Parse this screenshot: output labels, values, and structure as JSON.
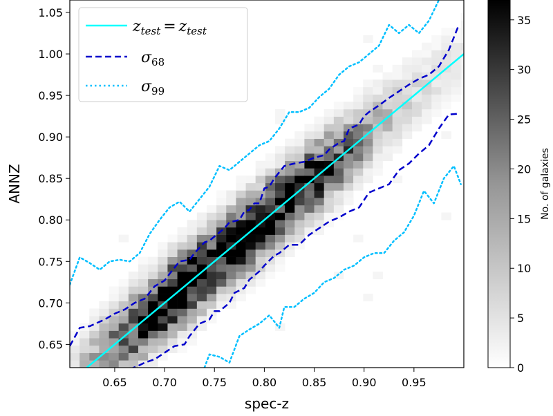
{
  "chart_data": {
    "type": "heatmap",
    "title": "",
    "xlabel": "spec-z",
    "ylabel": "ANNZ",
    "xlim": [
      0.605,
      1.0
    ],
    "ylim": [
      0.622,
      1.065
    ],
    "x_ticks": [
      0.65,
      0.7,
      0.75,
      0.8,
      0.85,
      0.9,
      0.95
    ],
    "x_tick_labels": [
      "0.65",
      "0.70",
      "0.75",
      "0.80",
      "0.85",
      "0.90",
      "0.95"
    ],
    "y_ticks": [
      0.65,
      0.7,
      0.75,
      0.8,
      0.85,
      0.9,
      0.95,
      1.0,
      1.05
    ],
    "y_tick_labels": [
      "0.65",
      "0.70",
      "0.75",
      "0.80",
      "0.85",
      "0.90",
      "0.95",
      "1.00",
      "1.05"
    ],
    "colorbar": {
      "label": "No. of galaxies",
      "range": [
        0,
        37
      ],
      "ticks": [
        0,
        5,
        10,
        15,
        20,
        25,
        30,
        35
      ],
      "tick_labels": [
        "0",
        "5",
        "10",
        "15",
        "20",
        "25",
        "30",
        "35"
      ],
      "colormap": "Greys"
    },
    "histogram": {
      "bin_width_x": 0.0098,
      "bin_width_y": 0.0089,
      "peak_density": 37,
      "scatter_sigma": 0.026,
      "peaks": [
        {
          "x": 0.715,
          "y": 0.705,
          "weight": 37
        },
        {
          "x": 0.785,
          "y": 0.79,
          "weight": 33
        },
        {
          "x": 0.83,
          "y": 0.83,
          "weight": 28
        }
      ]
    },
    "series": [
      {
        "name": "z_test = z_test",
        "style": "solid",
        "color": "#00ffff",
        "x": [
          0.605,
          1.0
        ],
        "y": [
          0.605,
          1.0
        ]
      },
      {
        "name": "σ68 upper",
        "style": "dashed",
        "color": "#0000cc",
        "x": [
          0.605,
          0.615,
          0.625,
          0.64,
          0.65,
          0.66,
          0.67,
          0.68,
          0.69,
          0.7,
          0.705,
          0.715,
          0.725,
          0.73,
          0.74,
          0.745,
          0.755,
          0.76,
          0.765,
          0.775,
          0.78,
          0.785,
          0.79,
          0.795,
          0.8,
          0.805,
          0.81,
          0.82,
          0.83,
          0.84,
          0.85,
          0.86,
          0.865,
          0.875,
          0.88,
          0.885,
          0.895,
          0.9,
          0.905,
          0.915,
          0.925,
          0.935,
          0.945,
          0.955,
          0.965,
          0.975,
          0.985,
          0.995
        ],
        "y": [
          0.648,
          0.67,
          0.672,
          0.68,
          0.687,
          0.692,
          0.7,
          0.705,
          0.72,
          0.727,
          0.735,
          0.75,
          0.752,
          0.76,
          0.773,
          0.775,
          0.785,
          0.79,
          0.797,
          0.8,
          0.81,
          0.812,
          0.82,
          0.82,
          0.838,
          0.84,
          0.85,
          0.865,
          0.868,
          0.87,
          0.875,
          0.878,
          0.885,
          0.893,
          0.895,
          0.91,
          0.915,
          0.925,
          0.93,
          0.938,
          0.947,
          0.955,
          0.963,
          0.97,
          0.975,
          0.985,
          1.005,
          1.035
        ]
      },
      {
        "name": "σ68 lower",
        "style": "dashed",
        "color": "#0000cc",
        "x": [
          0.665,
          0.675,
          0.68,
          0.69,
          0.7,
          0.71,
          0.72,
          0.725,
          0.735,
          0.745,
          0.75,
          0.755,
          0.765,
          0.77,
          0.78,
          0.785,
          0.795,
          0.8,
          0.81,
          0.815,
          0.825,
          0.835,
          0.845,
          0.855,
          0.865,
          0.875,
          0.885,
          0.895,
          0.905,
          0.915,
          0.925,
          0.935,
          0.945,
          0.955,
          0.965,
          0.975,
          0.985,
          0.995
        ],
        "y": [
          0.62,
          0.625,
          0.628,
          0.632,
          0.64,
          0.648,
          0.65,
          0.66,
          0.675,
          0.68,
          0.69,
          0.69,
          0.7,
          0.712,
          0.718,
          0.728,
          0.738,
          0.745,
          0.757,
          0.76,
          0.77,
          0.77,
          0.782,
          0.79,
          0.798,
          0.803,
          0.81,
          0.815,
          0.833,
          0.838,
          0.843,
          0.86,
          0.868,
          0.88,
          0.89,
          0.91,
          0.927,
          0.928
        ]
      },
      {
        "name": "σ99 upper",
        "style": "dotted",
        "color": "#00bfff",
        "x": [
          0.605,
          0.615,
          0.625,
          0.635,
          0.645,
          0.655,
          0.665,
          0.675,
          0.685,
          0.695,
          0.705,
          0.715,
          0.725,
          0.735,
          0.745,
          0.755,
          0.765,
          0.775,
          0.785,
          0.795,
          0.805,
          0.815,
          0.825,
          0.835,
          0.845,
          0.855,
          0.865,
          0.875,
          0.885,
          0.895,
          0.905,
          0.915,
          0.925,
          0.935,
          0.945,
          0.955,
          0.965,
          0.975
        ],
        "y": [
          0.722,
          0.755,
          0.748,
          0.74,
          0.75,
          0.752,
          0.75,
          0.76,
          0.783,
          0.8,
          0.815,
          0.822,
          0.81,
          0.825,
          0.84,
          0.865,
          0.86,
          0.87,
          0.88,
          0.89,
          0.895,
          0.91,
          0.93,
          0.93,
          0.935,
          0.948,
          0.958,
          0.975,
          0.985,
          0.99,
          1.0,
          1.01,
          1.035,
          1.025,
          1.035,
          1.025,
          1.04,
          1.065
        ]
      },
      {
        "name": "σ99 lower",
        "style": "dotted",
        "color": "#00bfff",
        "x": [
          0.74,
          0.745,
          0.755,
          0.765,
          0.775,
          0.785,
          0.795,
          0.805,
          0.815,
          0.82,
          0.83,
          0.84,
          0.85,
          0.86,
          0.87,
          0.88,
          0.89,
          0.9,
          0.91,
          0.92,
          0.93,
          0.94,
          0.95,
          0.96,
          0.97,
          0.98,
          0.99,
          0.997
        ],
        "y": [
          0.622,
          0.638,
          0.635,
          0.628,
          0.66,
          0.668,
          0.675,
          0.685,
          0.67,
          0.695,
          0.695,
          0.705,
          0.712,
          0.725,
          0.73,
          0.74,
          0.745,
          0.755,
          0.76,
          0.76,
          0.775,
          0.785,
          0.805,
          0.835,
          0.82,
          0.85,
          0.865,
          0.843
        ]
      }
    ],
    "legend": {
      "position": "upper-left",
      "entries": [
        {
          "label": "z",
          "sub": "test",
          "equals": "=",
          "label2": "z",
          "sub2": "test",
          "style": "solid",
          "color": "#00ffff"
        },
        {
          "label": "σ",
          "sub": "68",
          "style": "dashed",
          "color": "#0000cc"
        },
        {
          "label": "σ",
          "sub": "99",
          "style": "dotted",
          "color": "#00bfff"
        }
      ]
    }
  }
}
